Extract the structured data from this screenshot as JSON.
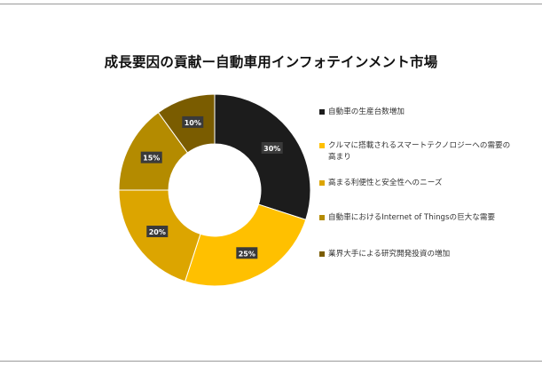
{
  "chart_data": {
    "type": "pie",
    "title": "成長要因の貢献ー自動車用インフォテインメント市場",
    "categories": [
      "自動車の生産台数増加",
      "クルマに搭載されるスマートテクノロジーへの需要の高まり",
      "高まる利便性と安全性へのニーズ",
      "自動車におけるInternet of Thingsの巨大な需要",
      "業界大手による研究開発投資の増加"
    ],
    "values": [
      30,
      25,
      20,
      15,
      10
    ],
    "data_labels": [
      "30%",
      "25%",
      "20%",
      "15%",
      "10%"
    ],
    "colors": [
      "#1c1c1c",
      "#ffc000",
      "#dca500",
      "#b48b00",
      "#7a5c00"
    ],
    "legend_placement": "right"
  }
}
